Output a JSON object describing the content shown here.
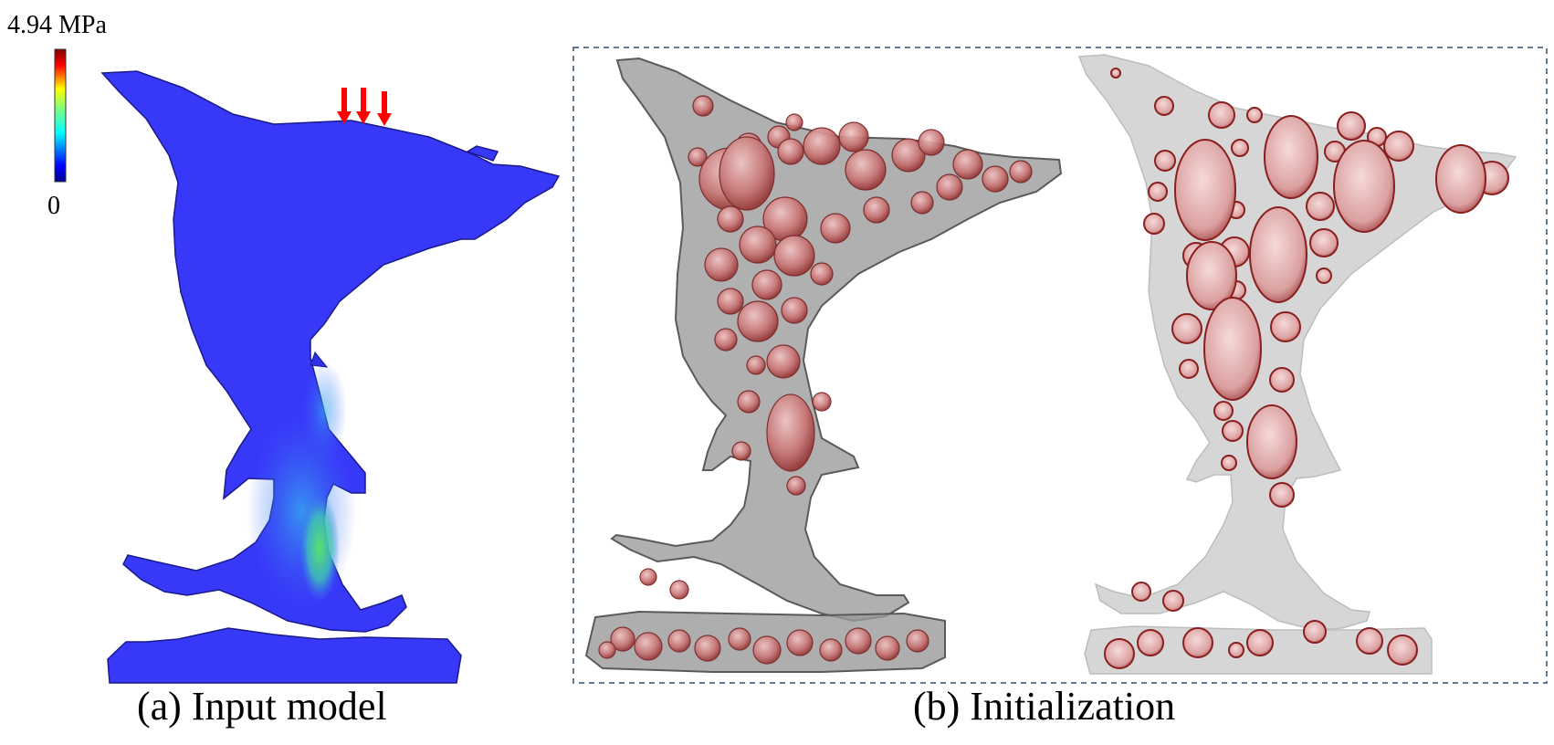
{
  "colorbar": {
    "max_label": "4.94 MPa",
    "min_label": "0",
    "max_value": 4.94,
    "min_value": 0,
    "unit": "MPa"
  },
  "panels": [
    {
      "id": "a",
      "caption": "(a) Input model"
    },
    {
      "id": "b",
      "caption": "(b) Initialization"
    }
  ],
  "colors": {
    "model_fill": "#3333ff",
    "load_arrow": "#ff0000",
    "void_fill": "#c46a6a",
    "void_edge": "#8a1f1f",
    "shell_transparent": "#8a8a8a",
    "section_fill": "#d4d4d4",
    "frame_border": "#2f4f6f"
  },
  "icons": {
    "load": "down-arrow-icon"
  }
}
